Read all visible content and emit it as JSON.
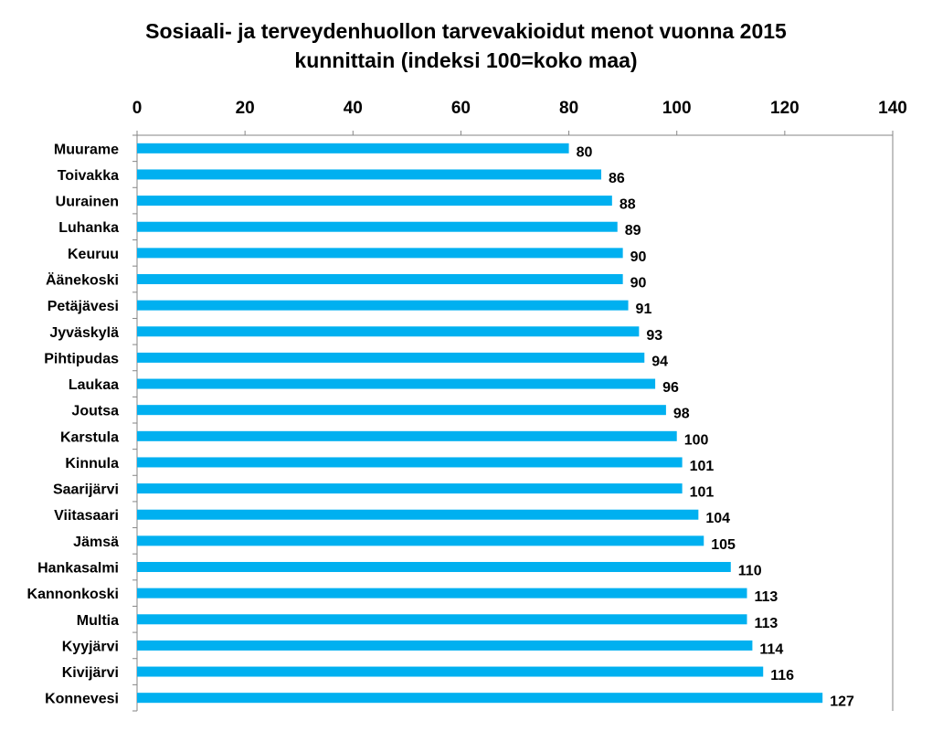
{
  "chart_data": {
    "type": "bar",
    "orientation": "horizontal",
    "title": "Sosiaali- ja terveydenhuollon tarvevakioidut menot vuonna 2015",
    "subtitle": "kunnittain  (indeksi 100=koko maa)",
    "xlabel": "",
    "ylabel": "",
    "xlim": [
      0,
      140
    ],
    "x_ticks": [
      "0",
      "20",
      "40",
      "60",
      "80",
      "100",
      "120",
      "140"
    ],
    "x_axis_position": "top",
    "grid": false,
    "legend": "none",
    "bar_color": "#00B0F0",
    "categories": [
      "Muurame",
      "Toivakka",
      "Uurainen",
      "Luhanka",
      "Keuruu",
      "Äänekoski",
      "Petäjävesi",
      "Jyväskylä",
      "Pihtipudas",
      "Laukaa",
      "Joutsa",
      "Karstula",
      "Kinnula",
      "Saarijärvi",
      "Viitasaari",
      "Jämsä",
      "Hankasalmi",
      "Kannonkoski",
      "Multia",
      "Kyyjärvi",
      "Kivijärvi",
      "Konnevesi"
    ],
    "values": [
      80,
      86,
      88,
      89,
      90,
      90,
      91,
      93,
      94,
      96,
      98,
      100,
      101,
      101,
      104,
      105,
      110,
      113,
      113,
      114,
      116,
      127
    ],
    "data_labels": [
      "80",
      "86",
      "88",
      "89",
      "90",
      "90",
      "91",
      "93",
      "94",
      "96",
      "98",
      "100",
      "101",
      "101",
      "104",
      "105",
      "110",
      "113",
      "113",
      "114",
      "116",
      "127"
    ]
  }
}
